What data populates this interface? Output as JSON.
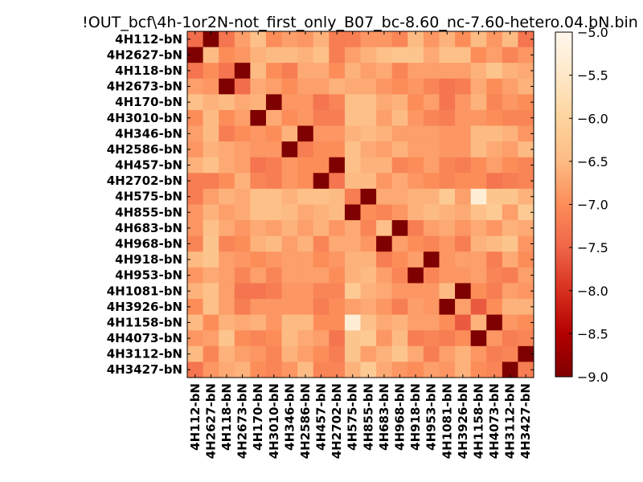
{
  "chart_data": {
    "type": "heatmap",
    "title": "!OUT_bcf\\4h-1or2N-not_first_only_B07_bc-8.60_nc-7.60-hetero.04.bN.bin",
    "row_labels": [
      "4H112-bN",
      "4H2627-bN",
      "4H118-bN",
      "4H2673-bN",
      "4H170-bN",
      "4H3010-bN",
      "4H346-bN",
      "4H2586-bN",
      "4H457-bN",
      "4H2702-bN",
      "4H575-bN",
      "4H855-bN",
      "4H683-bN",
      "4H968-bN",
      "4H918-bN",
      "4H953-bN",
      "4H1081-bN",
      "4H3926-bN",
      "4H1158-bN",
      "4H4073-bN",
      "4H3112-bN",
      "4H3427-bN"
    ],
    "col_labels": [
      "4H112-bN",
      "4H2627-bN",
      "4H118-bN",
      "4H2673-bN",
      "4H170-bN",
      "4H3010-bN",
      "4H346-bN",
      "4H2586-bN",
      "4H457-bN",
      "4H2702-bN",
      "4H575-bN",
      "4H855-bN",
      "4H683-bN",
      "4H968-bN",
      "4H918-bN",
      "4H953-bN",
      "4H1081-bN",
      "4H3926-bN",
      "4H1158-bN",
      "4H4073-bN",
      "4H3112-bN",
      "4H3427-bN"
    ],
    "values": [
      [
        -7.4,
        -9.0,
        -7.3,
        -6.8,
        -6.4,
        -7.0,
        -6.8,
        -6.9,
        -6.6,
        -7.2,
        -7.2,
        -6.9,
        -6.9,
        -7.1,
        -6.5,
        -6.9,
        -6.6,
        -7.0,
        -6.5,
        -6.9,
        -6.5,
        -7.3
      ],
      [
        -9.0,
        -6.5,
        -7.0,
        -6.9,
        -6.6,
        -6.5,
        -6.5,
        -6.6,
        -6.4,
        -7.2,
        -6.8,
        -6.6,
        -6.4,
        -6.3,
        -6.3,
        -6.7,
        -6.4,
        -6.4,
        -7.0,
        -6.8,
        -7.1,
        -6.9
      ],
      [
        -7.3,
        -7.0,
        -7.3,
        -9.0,
        -6.5,
        -7.0,
        -7.2,
        -6.7,
        -6.7,
        -7.0,
        -6.6,
        -6.8,
        -6.7,
        -7.1,
        -6.8,
        -6.8,
        -6.8,
        -6.8,
        -6.6,
        -6.3,
        -6.6,
        -6.7
      ],
      [
        -6.8,
        -6.9,
        -9.0,
        -7.4,
        -6.7,
        -6.8,
        -7.0,
        -6.8,
        -6.8,
        -6.6,
        -6.7,
        -6.7,
        -6.9,
        -7.0,
        -6.9,
        -7.1,
        -7.3,
        -7.2,
        -6.7,
        -7.0,
        -6.8,
        -6.6
      ],
      [
        -6.4,
        -6.6,
        -6.5,
        -6.7,
        -6.6,
        -9.0,
        -6.9,
        -6.9,
        -7.3,
        -7.1,
        -6.4,
        -6.4,
        -6.7,
        -6.6,
        -7.0,
        -6.8,
        -7.3,
        -6.9,
        -6.6,
        -7.1,
        -6.9,
        -7.0
      ],
      [
        -7.0,
        -6.5,
        -7.0,
        -6.8,
        -9.0,
        -6.7,
        -7.0,
        -6.9,
        -7.2,
        -7.2,
        -6.4,
        -6.4,
        -6.8,
        -6.5,
        -6.9,
        -7.1,
        -7.2,
        -6.9,
        -6.9,
        -7.0,
        -7.1,
        -7.1
      ],
      [
        -6.8,
        -6.5,
        -7.2,
        -7.0,
        -6.9,
        -7.0,
        -6.6,
        -9.0,
        -6.9,
        -6.9,
        -6.6,
        -6.5,
        -6.6,
        -6.8,
        -6.8,
        -6.8,
        -6.9,
        -6.9,
        -6.5,
        -6.5,
        -6.6,
        -6.9
      ],
      [
        -6.9,
        -6.6,
        -6.7,
        -6.8,
        -6.9,
        -6.9,
        -9.0,
        -7.2,
        -7.0,
        -7.0,
        -6.4,
        -6.7,
        -6.8,
        -6.6,
        -6.8,
        -6.8,
        -6.9,
        -6.9,
        -6.5,
        -6.7,
        -6.8,
        -6.5
      ],
      [
        -6.6,
        -6.4,
        -6.7,
        -6.8,
        -7.3,
        -7.2,
        -6.9,
        -7.0,
        -7.0,
        -9.0,
        -6.4,
        -6.6,
        -6.6,
        -7.1,
        -7.0,
        -6.8,
        -7.1,
        -7.2,
        -7.0,
        -6.8,
        -7.0,
        -7.1
      ],
      [
        -7.2,
        -7.2,
        -7.0,
        -6.6,
        -7.1,
        -7.2,
        -6.9,
        -7.0,
        -9.0,
        -7.3,
        -6.5,
        -6.5,
        -6.9,
        -6.7,
        -6.9,
        -7.0,
        -7.1,
        -7.0,
        -7.0,
        -7.3,
        -7.2,
        -7.1
      ],
      [
        -7.2,
        -6.8,
        -6.6,
        -6.7,
        -6.4,
        -6.4,
        -6.6,
        -6.4,
        -6.4,
        -6.5,
        -7.2,
        -9.0,
        -6.7,
        -6.7,
        -6.6,
        -6.6,
        -6.2,
        -6.8,
        -5.3,
        -6.3,
        -6.3,
        -6.6
      ],
      [
        -6.9,
        -6.6,
        -6.8,
        -6.7,
        -6.4,
        -6.4,
        -6.5,
        -6.7,
        -6.6,
        -6.5,
        -9.0,
        -7.0,
        -7.1,
        -6.9,
        -6.6,
        -6.5,
        -6.6,
        -6.7,
        -6.4,
        -6.2,
        -6.8,
        -6.2
      ],
      [
        -6.9,
        -6.4,
        -6.7,
        -6.9,
        -6.7,
        -6.8,
        -6.6,
        -6.8,
        -6.6,
        -6.9,
        -6.7,
        -7.1,
        -6.4,
        -9.0,
        -7.2,
        -6.8,
        -6.7,
        -6.9,
        -6.7,
        -6.9,
        -6.6,
        -6.7
      ],
      [
        -7.1,
        -6.3,
        -7.1,
        -7.0,
        -6.6,
        -6.5,
        -6.8,
        -6.6,
        -7.1,
        -6.7,
        -6.7,
        -6.9,
        -9.0,
        -6.8,
        -7.0,
        -7.1,
        -6.9,
        -7.2,
        -6.6,
        -6.5,
        -6.3,
        -6.9
      ],
      [
        -6.5,
        -6.3,
        -6.8,
        -6.9,
        -7.0,
        -6.9,
        -6.8,
        -6.8,
        -7.0,
        -6.9,
        -6.6,
        -6.6,
        -7.2,
        -7.0,
        -6.8,
        -9.0,
        -6.9,
        -6.8,
        -6.8,
        -7.2,
        -6.7,
        -7.0
      ],
      [
        -6.9,
        -6.7,
        -6.8,
        -7.1,
        -6.8,
        -7.1,
        -6.8,
        -6.8,
        -6.8,
        -7.0,
        -6.6,
        -6.5,
        -6.8,
        -7.1,
        -9.0,
        -7.1,
        -6.9,
        -6.9,
        -6.8,
        -7.1,
        -7.2,
        -6.8
      ],
      [
        -6.6,
        -6.4,
        -6.8,
        -7.3,
        -7.3,
        -7.2,
        -6.9,
        -6.9,
        -7.1,
        -7.1,
        -6.2,
        -6.6,
        -6.7,
        -6.9,
        -6.9,
        -6.9,
        -6.5,
        -9.0,
        -7.0,
        -7.2,
        -6.8,
        -6.9
      ],
      [
        -7.0,
        -6.4,
        -6.8,
        -7.2,
        -6.9,
        -6.9,
        -6.9,
        -6.9,
        -7.2,
        -7.0,
        -6.8,
        -6.7,
        -6.9,
        -7.2,
        -6.8,
        -6.9,
        -9.0,
        -6.8,
        -7.6,
        -7.0,
        -6.6,
        -6.6
      ],
      [
        -6.5,
        -7.0,
        -6.6,
        -6.7,
        -6.6,
        -6.9,
        -6.5,
        -6.5,
        -7.0,
        -7.0,
        -5.3,
        -6.4,
        -6.7,
        -6.6,
        -6.8,
        -6.8,
        -7.0,
        -7.6,
        -6.6,
        -9.0,
        -6.9,
        -7.0
      ],
      [
        -6.9,
        -6.8,
        -6.3,
        -7.0,
        -7.1,
        -7.0,
        -6.5,
        -6.7,
        -6.8,
        -7.3,
        -6.3,
        -6.2,
        -6.9,
        -6.5,
        -7.2,
        -7.1,
        -7.2,
        -7.0,
        -9.0,
        -6.9,
        -7.2,
        -7.1
      ],
      [
        -6.5,
        -7.1,
        -6.6,
        -6.8,
        -6.9,
        -7.1,
        -6.6,
        -6.8,
        -7.0,
        -7.2,
        -6.3,
        -6.8,
        -6.6,
        -6.3,
        -6.7,
        -7.2,
        -6.8,
        -6.6,
        -6.9,
        -7.2,
        -7.1,
        -9.0
      ],
      [
        -7.3,
        -6.9,
        -6.7,
        -6.6,
        -7.0,
        -7.1,
        -6.9,
        -6.5,
        -7.1,
        -7.1,
        -6.6,
        -6.2,
        -6.7,
        -6.9,
        -7.0,
        -6.8,
        -6.9,
        -6.6,
        -7.0,
        -7.1,
        -9.0,
        -7.2
      ]
    ],
    "vmin": -9.0,
    "vmax": -5.0,
    "colormap": "OrRd_r",
    "colorbar": {
      "ticks": [
        -9.0,
        -8.5,
        -8.0,
        -7.5,
        -7.0,
        -6.5,
        -6.0,
        -5.5,
        -5.0
      ],
      "tick_labels": [
        "−9.0",
        "−8.5",
        "−8.0",
        "−7.5",
        "−7.0",
        "−6.5",
        "−6.0",
        "−5.5",
        "−5.0"
      ]
    },
    "colormap_stops": [
      "#7f0000",
      "#b30000",
      "#d7301f",
      "#ef6548",
      "#fc8d59",
      "#fdbb84",
      "#fdd49e",
      "#fee8c8",
      "#fff7ec"
    ]
  }
}
